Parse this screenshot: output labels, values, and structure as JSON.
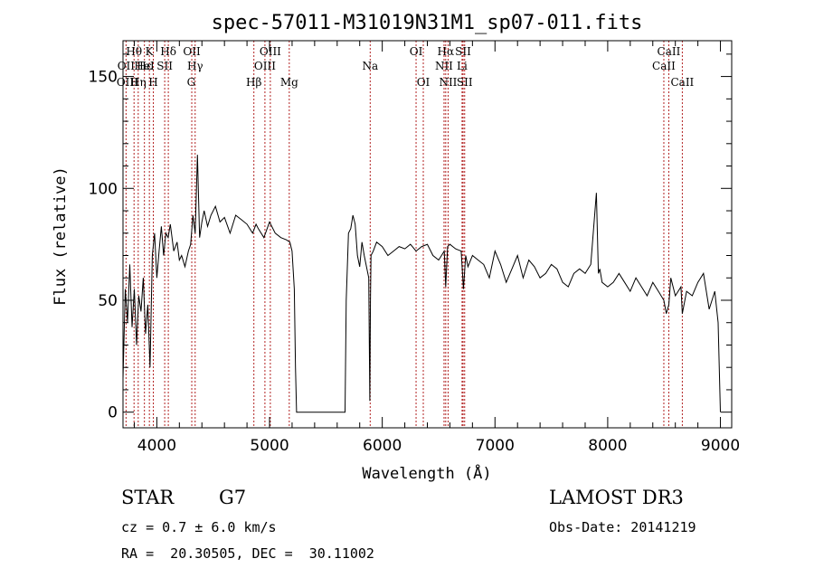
{
  "chart_data": {
    "type": "line",
    "title": "spec-57011-M31019N31M1_sp07-011.fits",
    "xlabel": "Wavelength (Å)",
    "ylabel": "Flux (relative)",
    "xlim": [
      3700,
      9100
    ],
    "ylim": [
      -7,
      166
    ],
    "xticks": [
      4000,
      5000,
      6000,
      7000,
      8000,
      9000
    ],
    "yticks": [
      0,
      50,
      100,
      150
    ],
    "series": [
      {
        "name": "flux",
        "x": [
          3700,
          3720,
          3740,
          3760,
          3780,
          3800,
          3820,
          3840,
          3860,
          3880,
          3900,
          3920,
          3940,
          3960,
          3980,
          4000,
          4020,
          4040,
          4060,
          4080,
          4100,
          4120,
          4150,
          4180,
          4200,
          4220,
          4250,
          4280,
          4300,
          4320,
          4340,
          4360,
          4380,
          4400,
          4420,
          4450,
          4480,
          4520,
          4560,
          4600,
          4650,
          4700,
          4750,
          4800,
          4850,
          4880,
          4900,
          4950,
          5000,
          5050,
          5100,
          5150,
          5180,
          5200,
          5220,
          5230,
          5240,
          5300,
          5400,
          5500,
          5600,
          5670,
          5680,
          5700,
          5720,
          5740,
          5760,
          5780,
          5800,
          5820,
          5840,
          5860,
          5880,
          5890,
          5895,
          5900,
          5920,
          5950,
          6000,
          6050,
          6100,
          6150,
          6200,
          6250,
          6300,
          6350,
          6400,
          6450,
          6500,
          6550,
          6563,
          6580,
          6600,
          6650,
          6700,
          6720,
          6740,
          6760,
          6800,
          6850,
          6900,
          6950,
          7000,
          7050,
          7100,
          7150,
          7200,
          7250,
          7300,
          7350,
          7400,
          7450,
          7500,
          7550,
          7600,
          7650,
          7700,
          7750,
          7800,
          7850,
          7900,
          7917,
          7930,
          7950,
          8000,
          8050,
          8100,
          8150,
          8200,
          8250,
          8300,
          8350,
          8400,
          8450,
          8498,
          8520,
          8542,
          8560,
          8600,
          8650,
          8662,
          8700,
          8750,
          8800,
          8850,
          8900,
          8950,
          8980,
          9000
        ],
        "values": [
          15,
          55,
          40,
          66,
          38,
          55,
          30,
          52,
          45,
          60,
          35,
          48,
          20,
          70,
          80,
          60,
          72,
          83,
          70,
          80,
          78,
          84,
          72,
          76,
          68,
          70,
          65,
          72,
          75,
          88,
          80,
          115,
          78,
          85,
          90,
          83,
          88,
          92,
          85,
          87,
          80,
          88,
          86,
          84,
          80,
          84,
          82,
          78,
          85,
          80,
          78,
          77,
          76,
          72,
          55,
          20,
          0,
          0,
          0,
          0,
          0,
          0,
          50,
          80,
          82,
          88,
          84,
          70,
          65,
          76,
          70,
          65,
          60,
          5,
          50,
          70,
          72,
          76,
          74,
          70,
          72,
          74,
          73,
          75,
          72,
          74,
          75,
          70,
          68,
          72,
          56,
          74,
          75,
          73,
          72,
          55,
          70,
          65,
          70,
          68,
          66,
          60,
          72,
          66,
          58,
          64,
          70,
          60,
          68,
          65,
          60,
          62,
          66,
          64,
          58,
          56,
          62,
          64,
          62,
          66,
          98,
          62,
          64,
          58,
          56,
          58,
          62,
          58,
          54,
          60,
          56,
          52,
          58,
          54,
          50,
          44,
          48,
          60,
          52,
          56,
          44,
          54,
          52,
          58,
          62,
          46,
          54,
          40,
          0
        ]
      }
    ],
    "line_labels": [
      {
        "text": "Hθ",
        "x": 3798,
        "row": 1,
        "line": true
      },
      {
        "text": "OII",
        "x": 3727,
        "row": 2,
        "line": true
      },
      {
        "text": "OIII",
        "x": 3739,
        "row": 3,
        "line": false
      },
      {
        "text": "Hη",
        "x": 3835,
        "row": 3,
        "line": true
      },
      {
        "text": "Hε",
        "x": 3890,
        "row": 2,
        "line": true
      },
      {
        "text": "K",
        "x": 3934,
        "row": 1,
        "line": true
      },
      {
        "text": "HeI",
        "x": 3889,
        "row": 2,
        "line": false
      },
      {
        "text": "H",
        "x": 3969,
        "row": 3,
        "line": true
      },
      {
        "text": "SII",
        "x": 4070,
        "row": 2,
        "line": true
      },
      {
        "text": "Hδ",
        "x": 4102,
        "row": 1,
        "line": true
      },
      {
        "text": "OII",
        "x": 4310,
        "row": 1,
        "line": true
      },
      {
        "text": "Hγ",
        "x": 4340,
        "row": 2,
        "line": true
      },
      {
        "text": "G",
        "x": 4305,
        "row": 3,
        "line": false
      },
      {
        "text": "OIII",
        "x": 5007,
        "row": 1,
        "line": true
      },
      {
        "text": "OIII",
        "x": 4959,
        "row": 2,
        "line": true
      },
      {
        "text": "Hβ",
        "x": 4861,
        "row": 3,
        "line": true
      },
      {
        "text": "Mg",
        "x": 5175,
        "row": 3,
        "line": true
      },
      {
        "text": "Na",
        "x": 5893,
        "row": 2,
        "line": true
      },
      {
        "text": "OI",
        "x": 6300,
        "row": 1,
        "line": true
      },
      {
        "text": "OI",
        "x": 6364,
        "row": 3,
        "line": true
      },
      {
        "text": "Hα",
        "x": 6563,
        "row": 1,
        "line": true
      },
      {
        "text": "NII",
        "x": 6548,
        "row": 2,
        "line": true
      },
      {
        "text": "NII",
        "x": 6584,
        "row": 3,
        "line": true
      },
      {
        "text": "SII",
        "x": 6717,
        "row": 1,
        "line": true
      },
      {
        "text": "Li",
        "x": 6708,
        "row": 2,
        "line": true
      },
      {
        "text": "SII",
        "x": 6731,
        "row": 3,
        "line": true
      },
      {
        "text": "CaII",
        "x": 8542,
        "row": 1,
        "line": true
      },
      {
        "text": "CaII",
        "x": 8498,
        "row": 2,
        "line": true
      },
      {
        "text": "CaII",
        "x": 8662,
        "row": 3,
        "line": true
      }
    ]
  },
  "info": {
    "object_class": "STAR",
    "subclass": "G7",
    "survey": "LAMOST DR3",
    "cz": "cz = 0.7 ± 6.0 km/s",
    "obs_date": "Obs-Date: 20141219",
    "coords": "RA =  20.30505, DEC =  30.11002"
  }
}
